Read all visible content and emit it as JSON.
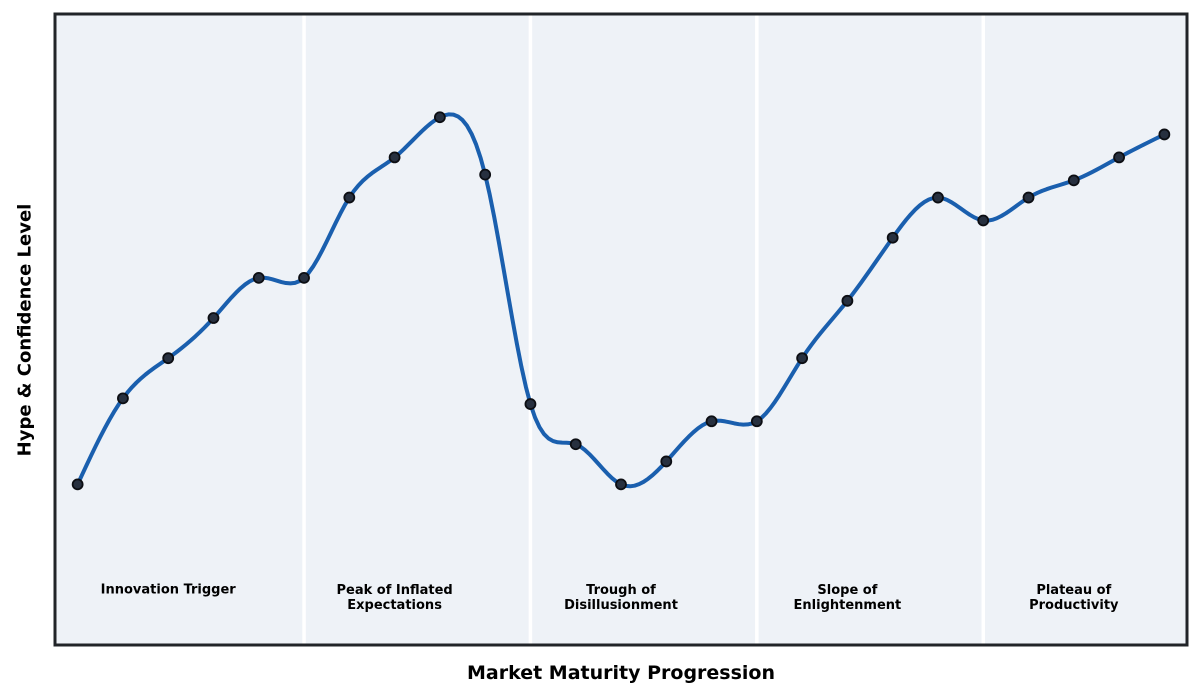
{
  "colors": {
    "page_background": "#ffffff",
    "plot_background": "#eef2f7",
    "phase_divider": "#ffffff",
    "axis_border": "#212428",
    "curve": "#1a5fae",
    "marker_fill": "#27303f",
    "marker_edge": "#0c0e13",
    "text": "#000000"
  },
  "chart_data": {
    "type": "line",
    "title": "",
    "xlabel": "Market Maturity Progression",
    "ylabel": "Hype & Confidence Level",
    "x": [
      0,
      1,
      2,
      3,
      4,
      5,
      6,
      7,
      8,
      9,
      10,
      11,
      12,
      13,
      14,
      15,
      16,
      17,
      18,
      19,
      20,
      21,
      22,
      23,
      24
    ],
    "values": [
      28,
      43,
      50,
      57,
      64,
      64,
      78,
      85,
      92,
      82,
      42,
      35,
      28,
      32,
      39,
      39,
      50,
      60,
      71,
      78,
      74,
      78,
      81,
      85,
      89
    ],
    "xlim": [
      -0.5,
      24.5
    ],
    "ylim": [
      0,
      110
    ],
    "grid": false,
    "legend_position": "none",
    "axis_ticks": "none",
    "smoothing": "cubic-spline",
    "marker": "circle",
    "phases": [
      {
        "label": "Innovation Trigger",
        "start": -0.5,
        "end": 5,
        "label_x": 2
      },
      {
        "label": "Peak of Inflated\nExpectations",
        "start": 5,
        "end": 10,
        "label_x": 7
      },
      {
        "label": "Trough of\nDisillusionment",
        "start": 10,
        "end": 15,
        "label_x": 12
      },
      {
        "label": "Slope of\nEnlightenment",
        "start": 15,
        "end": 20,
        "label_x": 17
      },
      {
        "label": "Plateau of\nProductivity",
        "start": 20,
        "end": 24.5,
        "label_x": 22
      }
    ]
  }
}
